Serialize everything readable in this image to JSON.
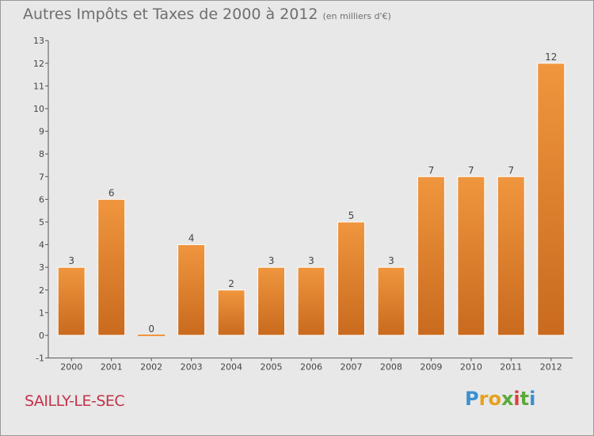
{
  "header": {
    "title": "Autres Impôts et Taxes de 2000 à 2012",
    "unit": "(en milliers d'€)"
  },
  "footer": {
    "commune": "SAILLY-LE-SEC",
    "logo": [
      "P",
      "r",
      "o",
      "x",
      "i",
      "t",
      "i"
    ],
    "logo_colors": [
      "#3a8fd0",
      "#e6a11f",
      "#e6a11f",
      "#5aaa3a",
      "#d94040",
      "#5aaa3a",
      "#3a8fd0"
    ]
  },
  "chart_data": {
    "type": "bar",
    "categories": [
      "2000",
      "2001",
      "2002",
      "2003",
      "2004",
      "2005",
      "2006",
      "2007",
      "2008",
      "2009",
      "2010",
      "2011",
      "2012"
    ],
    "values": [
      3,
      6,
      0,
      4,
      2,
      3,
      3,
      5,
      3,
      7,
      7,
      7,
      12
    ],
    "data_labels": [
      "3",
      "6",
      "0",
      "4",
      "2",
      "3",
      "3",
      "5",
      "3",
      "7",
      "7",
      "7",
      "12"
    ],
    "title": "Autres Impôts et Taxes de 2000 à 2012",
    "subtitle": "(en milliers d'€)",
    "xlabel": "",
    "ylabel": "",
    "ylim": [
      -1,
      13
    ],
    "yticks": [
      -1,
      0,
      1,
      2,
      3,
      4,
      5,
      6,
      7,
      8,
      9,
      10,
      11,
      12,
      13
    ],
    "grid": false,
    "bar_color": "#f0963e",
    "bar_color_dark": "#c96a1e"
  }
}
